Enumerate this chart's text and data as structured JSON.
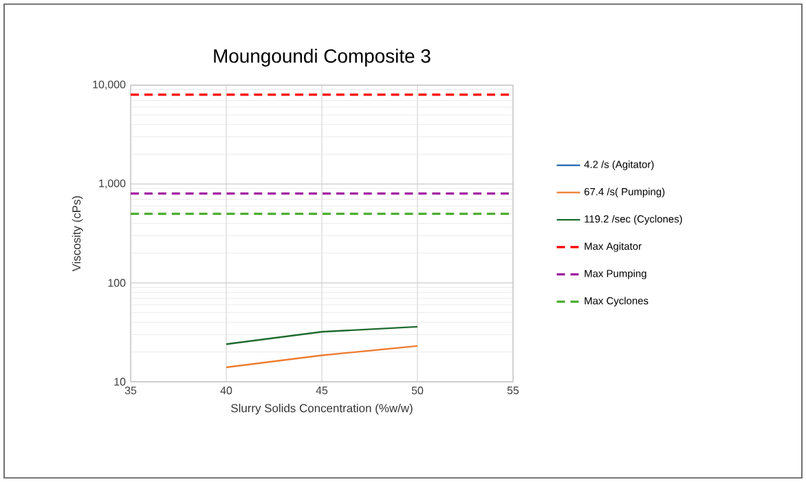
{
  "chart_data": {
    "type": "line",
    "title": "Moungoundi Composite 3",
    "xlabel": "Slurry Solids Concentration (%w/w)",
    "ylabel": "Viscosity (cPs)",
    "x": [
      40,
      45,
      50
    ],
    "series": [
      {
        "name": "4.2 /s (Agitator)",
        "color": "#2e75b6",
        "values": [
          null,
          null,
          null
        ]
      },
      {
        "name": "67.4 /s( Pumping)",
        "color": "#ed7d31",
        "values": [
          14,
          18.5,
          23
        ]
      },
      {
        "name": "119.2 /sec (Cyclones)",
        "color": "#1e6b2e",
        "values": [
          24,
          32,
          36
        ]
      }
    ],
    "ref_lines": [
      {
        "axis": "y",
        "value": 8000,
        "label": "Max Agitator",
        "color": "#ff0000",
        "line_style": "dashed"
      },
      {
        "axis": "y",
        "value": 800,
        "label": "Max Pumping",
        "color": "#a020a0",
        "line_style": "dashed"
      },
      {
        "axis": "y",
        "value": 500,
        "label": "Max Cyclones",
        "color": "#4cae30",
        "line_style": "dashed"
      }
    ],
    "xlim": [
      35,
      55
    ],
    "xticks": [
      35,
      40,
      45,
      50,
      55
    ],
    "ylim": [
      10,
      10000
    ],
    "yticks": [
      {
        "value": 10,
        "label": "10"
      },
      {
        "value": 100,
        "label": "100"
      },
      {
        "value": 1000,
        "label": "1,000"
      },
      {
        "value": 10000,
        "label": "10,000"
      }
    ],
    "log": "y",
    "grid": true,
    "legend": "right"
  }
}
